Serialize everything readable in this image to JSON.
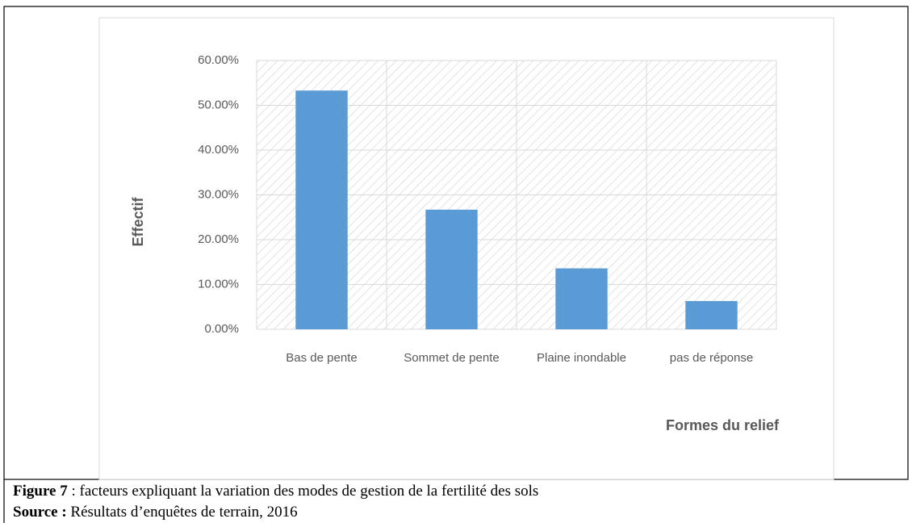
{
  "chart_data": {
    "type": "bar",
    "x_label": "Formes du relief",
    "y_label": "Effectif",
    "categories": [
      "Bas de pente",
      "Sommet de pente",
      "Plaine inondable",
      "pas de réponse"
    ],
    "values": [
      53.3,
      26.7,
      13.6,
      6.3
    ],
    "color": "#5b9bd5",
    "ylim": [
      0,
      60
    ],
    "yticks": [
      {
        "value": 0,
        "label": "0.00%"
      },
      {
        "value": 10,
        "label": "10.00%"
      },
      {
        "value": 20,
        "label": "20.00%"
      },
      {
        "value": 30,
        "label": "30.00%"
      },
      {
        "value": 40,
        "label": "40.00%"
      },
      {
        "value": 50,
        "label": "50.00%"
      },
      {
        "value": 60,
        "label": "60.00%"
      }
    ],
    "grid": true
  },
  "caption": {
    "figure_label": "Figure 7",
    "figure_text": " : facteurs expliquant la variation des modes de gestion de la fertilité des sols",
    "source_label": "Source :",
    "source_text": " Résultats d’enquêtes de terrain, 2016"
  }
}
